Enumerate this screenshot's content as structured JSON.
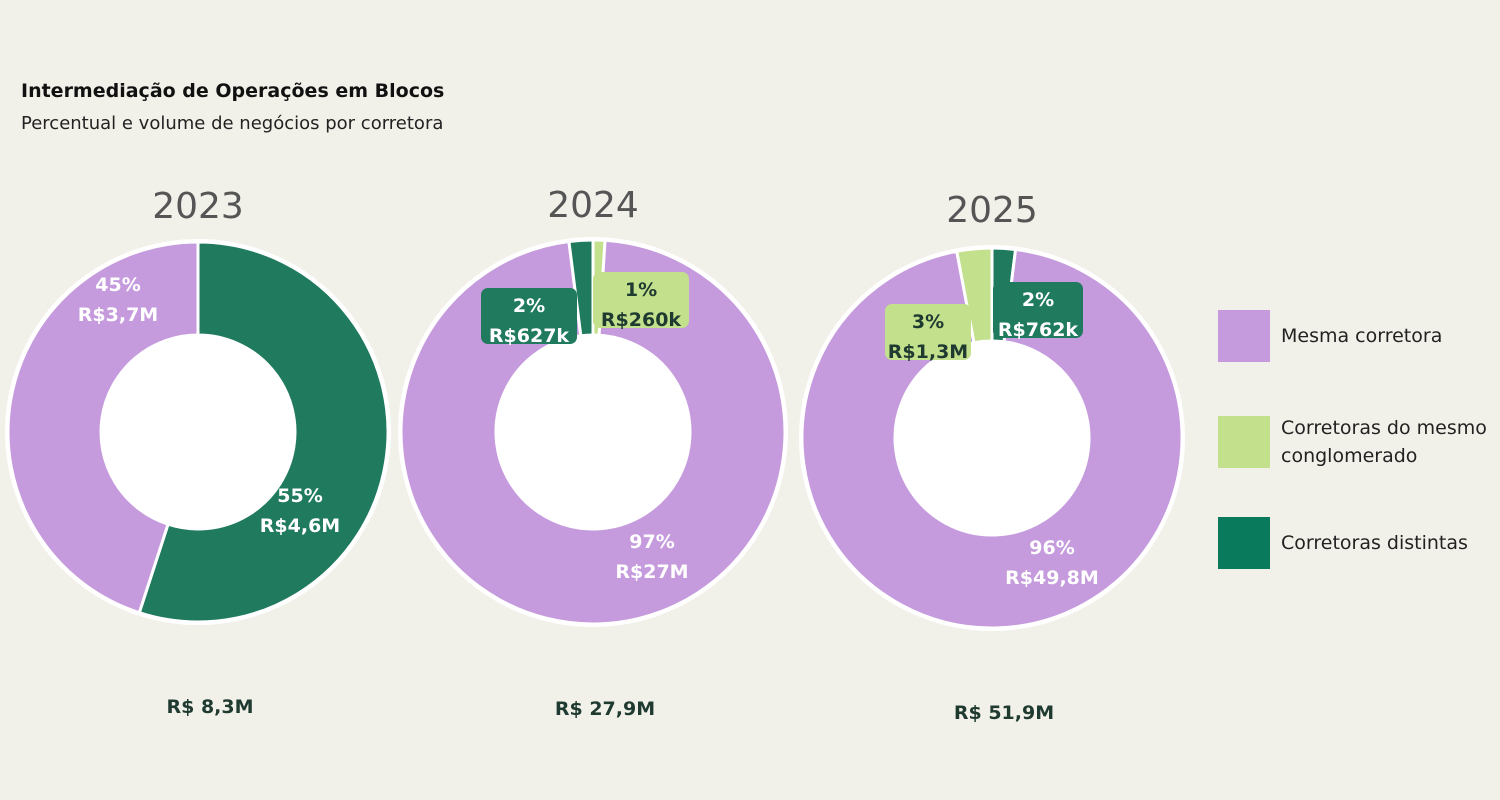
{
  "title": "Intermediação de Operações em Blocos",
  "subtitle": "Percentual e volume de negócios por corretora",
  "colors": {
    "mesma_corretora": "#c59bdd",
    "corretoras_conglomerado": "#c3e08c",
    "corretoras_distintas": "#1f7a5e",
    "legend_distintas": "#0a7a5c"
  },
  "legend": [
    {
      "label": "Mesma corretora",
      "color": "#c59bdd"
    },
    {
      "label": "Corretoras do mesmo conglomerado",
      "color": "#c3e08c"
    },
    {
      "label": "Corretoras distintas",
      "color": "#0a7a5c"
    }
  ],
  "chart_data": [
    {
      "type": "pie",
      "title": "2023",
      "total": "R$ 8,3M",
      "slices": [
        {
          "series": "Corretoras distintas",
          "percent": 55,
          "pct_label": "55%",
          "value_label": "R$4,6M"
        },
        {
          "series": "Mesma corretora",
          "percent": 45,
          "pct_label": "45%",
          "value_label": "R$3,7M"
        }
      ]
    },
    {
      "type": "pie",
      "title": "2024",
      "total": "R$ 27,9M",
      "slices": [
        {
          "series": "Corretoras do mesmo conglomerado",
          "percent": 1,
          "pct_label": "1%",
          "value_label": "R$260k"
        },
        {
          "series": "Mesma corretora",
          "percent": 97,
          "pct_label": "97%",
          "value_label": "R$27M"
        },
        {
          "series": "Corretoras distintas",
          "percent": 2,
          "pct_label": "2%",
          "value_label": "R$627k"
        }
      ]
    },
    {
      "type": "pie",
      "title": "2025",
      "total": "R$ 51,9M",
      "slices": [
        {
          "series": "Corretoras distintas",
          "percent": 2,
          "pct_label": "2%",
          "value_label": "R$762k"
        },
        {
          "series": "Mesma corretora",
          "percent": 96,
          "pct_label": "96%",
          "value_label": "R$49,8M"
        },
        {
          "series": "Corretoras do mesmo conglomerado",
          "percent": 3,
          "pct_label": "3%",
          "value_label": "R$1,3M"
        }
      ]
    }
  ]
}
